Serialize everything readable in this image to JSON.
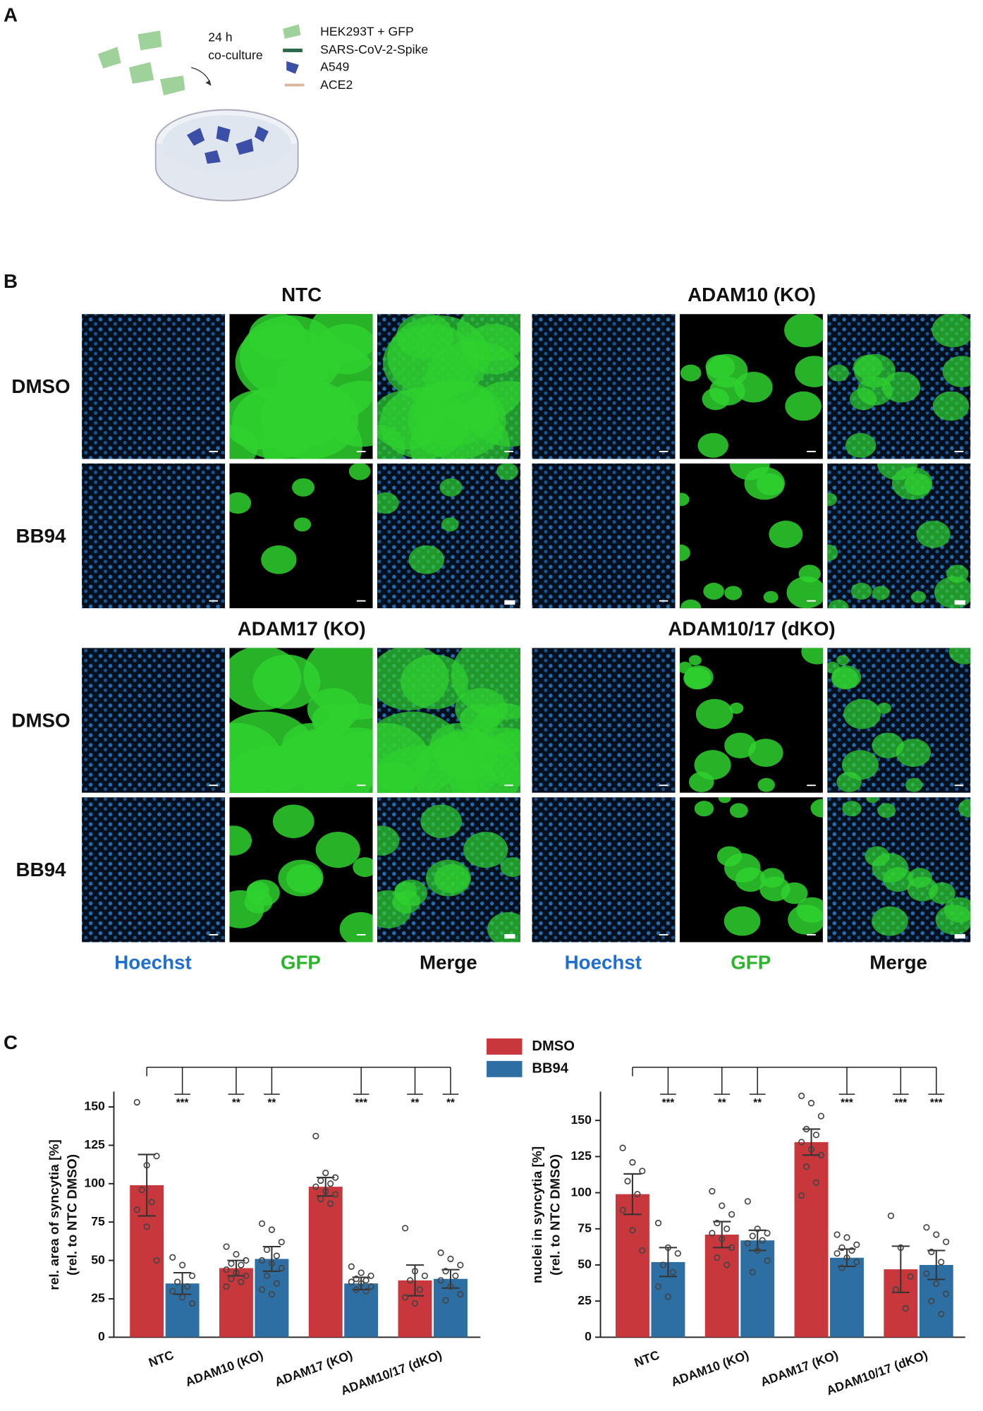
{
  "panel_a": {
    "label": "A",
    "arrow_text": [
      "24 h",
      "co-culture"
    ],
    "legend": [
      "HEK293T + GFP",
      "SARS-CoV-2-Spike",
      "A549",
      "ACE2"
    ]
  },
  "panel_b": {
    "label": "B",
    "groups": [
      "NTC",
      "ADAM10 (KO)",
      "ADAM17 (KO)",
      "ADAM10/17 (dKO)"
    ],
    "rows": [
      "DMSO",
      "BB94"
    ],
    "channels": [
      "Hoechst",
      "GFP",
      "Merge"
    ]
  },
  "panel_c": {
    "label": "C"
  },
  "chart_data": [
    {
      "type": "bar",
      "ylabel": [
        "rel. area of syncytia [%]",
        "(rel. to NTC DMSO)"
      ],
      "categories": [
        "NTC",
        "ADAM10 (KO)",
        "ADAM17 (KO)",
        "ADAM10/17 (dKO)"
      ],
      "ylim": [
        0,
        160
      ],
      "yticks": [
        0,
        25,
        50,
        75,
        100,
        125,
        150
      ],
      "series": [
        {
          "name": "DMSO",
          "color": "#c8373c",
          "values": [
            99,
            45,
            98,
            37
          ],
          "errors": [
            20,
            5,
            6,
            10
          ],
          "stars": [
            null,
            "**",
            null,
            "**"
          ],
          "points": [
            [
              153,
              112,
              118,
              96,
              88,
              83,
              72,
              50
            ],
            [
              59,
              54,
              50,
              48,
              47,
              44,
              42,
              40,
              38,
              36,
              33
            ],
            [
              131,
              107,
              104,
              102,
              100,
              98,
              95,
              93,
              90,
              87
            ],
            [
              71,
              43,
              40,
              37,
              31,
              26,
              22
            ]
          ]
        },
        {
          "name": "BB94",
          "color": "#2e6fa3",
          "values": [
            35,
            51,
            35,
            38
          ],
          "errors": [
            7,
            8,
            4,
            6
          ],
          "stars": [
            "***",
            "**",
            "***",
            "**"
          ],
          "points": [
            [
              52,
              47,
              40,
              36,
              33,
              30,
              26,
              22
            ],
            [
              74,
              70,
              62,
              57,
              53,
              50,
              48,
              45,
              40,
              35,
              31,
              28
            ],
            [
              46,
              42,
              40,
              38,
              37,
              36,
              35,
              33,
              31,
              30
            ],
            [
              55,
              51,
              47,
              43,
              40,
              37,
              33,
              28,
              24
            ]
          ]
        }
      ]
    },
    {
      "type": "bar",
      "ylabel": [
        "nuclei in syncytia [%]",
        "(rel. to NTC DMSO)"
      ],
      "categories": [
        "NTC",
        "ADAM10 (KO)",
        "ADAM17 (KO)",
        "ADAM10/17 (dKO)"
      ],
      "ylim": [
        0,
        170
      ],
      "yticks": [
        0,
        25,
        50,
        75,
        100,
        125,
        150
      ],
      "series": [
        {
          "name": "DMSO",
          "color": "#c8373c",
          "values": [
            99,
            71,
            135,
            47
          ],
          "errors": [
            14,
            9,
            9,
            16
          ],
          "stars": [
            null,
            "**",
            null,
            "***"
          ],
          "points": [
            [
              131,
              121,
              115,
              108,
              99,
              88,
              74,
              60
            ],
            [
              101,
              91,
              85,
              79,
              75,
              72,
              68,
              62,
              55,
              50
            ],
            [
              167,
              162,
              153,
              144,
              140,
              135,
              130,
              126,
              118,
              107,
              98
            ],
            [
              84,
              62,
              42,
              33,
              20
            ]
          ]
        },
        {
          "name": "BB94",
          "color": "#2e6fa3",
          "values": [
            52,
            67,
            55,
            50
          ],
          "errors": [
            10,
            7,
            6,
            10
          ],
          "stars": [
            "***",
            "**",
            "***",
            "***"
          ],
          "points": [
            [
              79,
              62,
              58,
              50,
              45,
              35,
              28
            ],
            [
              94,
              75,
              72,
              70,
              67,
              65,
              60,
              53,
              45
            ],
            [
              71,
              69,
              64,
              62,
              60,
              58,
              55,
              52,
              48
            ],
            [
              76,
              71,
              66,
              59,
              52,
              44,
              37,
              30,
              25,
              16
            ]
          ]
        }
      ]
    }
  ]
}
